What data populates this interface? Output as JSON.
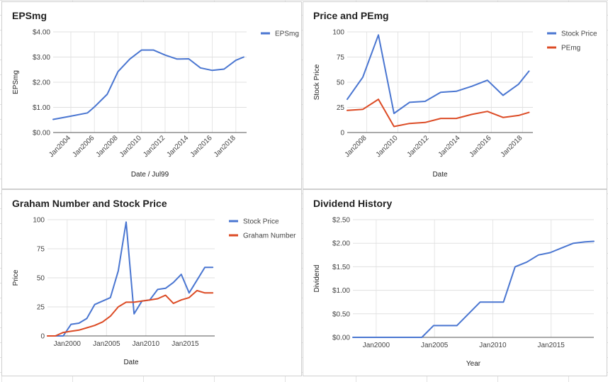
{
  "chart_data": [
    {
      "id": "p1",
      "type": "line",
      "title": "EPSmg",
      "xlabel": "Date / Jul99",
      "ylabel": "EPSmg",
      "x_type": "date",
      "xlim": [
        "2002-07-01",
        "2018-12-01"
      ],
      "ylim": [
        0,
        4
      ],
      "y_ticks": [
        0,
        1,
        2,
        3,
        4
      ],
      "y_tick_labels": [
        "$0.00",
        "$1.00",
        "$2.00",
        "$3.00",
        "$4.00"
      ],
      "x_ticks": [
        "2004-01-01",
        "2006-01-01",
        "2008-01-01",
        "2010-01-01",
        "2012-01-01",
        "2014-01-01",
        "2016-01-01",
        "2018-01-01"
      ],
      "x_tick_labels": [
        "Jan2004",
        "Jan2006",
        "Jan2008",
        "Jan2010",
        "Jan2012",
        "Jan2014",
        "Jan2016",
        "Jan2018"
      ],
      "x_tick_rotate": true,
      "legend": "right",
      "series": [
        {
          "name": "EPSmg",
          "color": "#4a76d1",
          "x": [
            "2002-07-01",
            "2004-01-01",
            "2005-06-01",
            "2006-01-01",
            "2007-02-01",
            "2008-01-01",
            "2009-01-01",
            "2010-01-01",
            "2011-01-01",
            "2012-01-01",
            "2013-01-01",
            "2014-01-01",
            "2015-01-01",
            "2016-01-01",
            "2017-01-01",
            "2018-01-01",
            "2018-09-01"
          ],
          "y": [
            0.52,
            0.65,
            0.78,
            1.02,
            1.52,
            2.42,
            2.92,
            3.28,
            3.28,
            3.08,
            2.92,
            2.93,
            2.57,
            2.47,
            2.52,
            2.87,
            3.0
          ]
        }
      ]
    },
    {
      "id": "p2",
      "type": "line",
      "title": "Price and PEmg",
      "xlabel": "Date",
      "ylabel": "Stock Price",
      "x_type": "date",
      "xlim": [
        "2006-10-01",
        "2018-09-01"
      ],
      "ylim": [
        0,
        100
      ],
      "y_ticks": [
        0,
        25,
        50,
        75,
        100
      ],
      "y_tick_labels": [
        "0",
        "25",
        "50",
        "75",
        "100"
      ],
      "x_ticks": [
        "2008-01-01",
        "2010-01-01",
        "2012-01-01",
        "2014-01-01",
        "2016-01-01",
        "2018-01-01"
      ],
      "x_tick_labels": [
        "Jan2008",
        "Jan2010",
        "Jan2012",
        "Jan2014",
        "Jan2016",
        "Jan2018"
      ],
      "x_tick_rotate": true,
      "legend": "right",
      "series": [
        {
          "name": "Stock Price",
          "color": "#4a76d1",
          "x": [
            "2006-10-01",
            "2007-10-01",
            "2008-10-01",
            "2009-10-01",
            "2010-10-01",
            "2011-10-01",
            "2012-10-01",
            "2013-10-01",
            "2014-10-01",
            "2015-10-01",
            "2016-10-01",
            "2017-10-01",
            "2018-06-01"
          ],
          "y": [
            33,
            55,
            97,
            19,
            30,
            31,
            40,
            41,
            46,
            52,
            37,
            48,
            61
          ]
        },
        {
          "name": "PEmg",
          "color": "#dc4b25",
          "x": [
            "2006-10-01",
            "2007-10-01",
            "2008-10-01",
            "2009-10-01",
            "2010-10-01",
            "2011-10-01",
            "2012-10-01",
            "2013-10-01",
            "2014-10-01",
            "2015-10-01",
            "2016-10-01",
            "2017-10-01",
            "2018-06-01"
          ],
          "y": [
            22,
            23,
            33,
            6,
            9,
            10,
            14,
            14,
            18,
            21,
            15,
            17,
            20
          ]
        }
      ]
    },
    {
      "id": "p3",
      "type": "line",
      "title": "Graham Number and Stock Price",
      "xlabel": "Date",
      "ylabel": "Price",
      "x_type": "date",
      "xlim": [
        "1997-07-01",
        "2018-10-01"
      ],
      "ylim": [
        0,
        100
      ],
      "y_ticks": [
        0,
        25,
        50,
        75,
        100
      ],
      "y_tick_labels": [
        "0",
        "25",
        "50",
        "75",
        "100"
      ],
      "x_ticks": [
        "2000-01-01",
        "2005-01-01",
        "2010-01-01",
        "2015-01-01"
      ],
      "x_tick_labels": [
        "Jan2000",
        "Jan2005",
        "Jan2010",
        "Jan2015"
      ],
      "x_tick_rotate": false,
      "legend": "right",
      "series": [
        {
          "name": "Stock Price",
          "color": "#4a76d1",
          "x": [
            "1997-07-01",
            "1998-07-01",
            "1999-07-01",
            "2000-07-01",
            "2001-07-01",
            "2002-07-01",
            "2003-07-01",
            "2004-07-01",
            "2005-07-01",
            "2006-07-01",
            "2007-07-01",
            "2008-07-01",
            "2009-07-01",
            "2010-07-01",
            "2011-07-01",
            "2012-07-01",
            "2013-07-01",
            "2014-07-01",
            "2015-07-01",
            "2016-07-01",
            "2017-07-01",
            "2018-07-01"
          ],
          "y": [
            0,
            0,
            0,
            10,
            11,
            15,
            27,
            30,
            33,
            56,
            98,
            19,
            30,
            31,
            40,
            41,
            46,
            53,
            37,
            48,
            59,
            59
          ]
        },
        {
          "name": "Graham Number",
          "color": "#dc4b25",
          "x": [
            "1997-07-01",
            "1998-07-01",
            "1999-07-01",
            "2000-07-01",
            "2001-07-01",
            "2002-07-01",
            "2003-07-01",
            "2004-07-01",
            "2005-07-01",
            "2006-07-01",
            "2007-07-01",
            "2008-07-01",
            "2009-07-01",
            "2010-07-01",
            "2011-07-01",
            "2012-07-01",
            "2013-07-01",
            "2014-07-01",
            "2015-07-01",
            "2016-07-01",
            "2017-07-01",
            "2018-07-01"
          ],
          "y": [
            0,
            0,
            3,
            4,
            5,
            7,
            9,
            12,
            17,
            25,
            29,
            29,
            30,
            31,
            32,
            35,
            28,
            31,
            33,
            39,
            37,
            37
          ]
        }
      ]
    },
    {
      "id": "p4",
      "type": "line",
      "title": "Dividend History",
      "xlabel": "Year",
      "ylabel": "Dividend",
      "x_type": "date",
      "xlim": [
        "1998-01-01",
        "2018-09-01"
      ],
      "ylim": [
        0,
        2.5
      ],
      "y_ticks": [
        0,
        0.5,
        1,
        1.5,
        2,
        2.5
      ],
      "y_tick_labels": [
        "$0.00",
        "$0.50",
        "$1.00",
        "$1.50",
        "$2.00",
        "$2.50"
      ],
      "x_ticks": [
        "2000-01-01",
        "2005-01-01",
        "2010-01-01",
        "2015-01-01"
      ],
      "x_tick_labels": [
        "Jan2000",
        "Jan2005",
        "Jan2010",
        "Jan2015"
      ],
      "x_tick_rotate": false,
      "legend": "none",
      "series": [
        {
          "name": "",
          "color": "#4a76d1",
          "x": [
            "1998-01-01",
            "2003-12-01",
            "2004-12-01",
            "2006-12-01",
            "2008-12-01",
            "2010-12-01",
            "2011-12-01",
            "2012-12-01",
            "2013-12-01",
            "2014-12-01",
            "2015-12-01",
            "2016-12-01",
            "2017-12-01",
            "2018-09-01"
          ],
          "y": [
            0,
            0,
            0.25,
            0.25,
            0.75,
            0.75,
            1.5,
            1.6,
            1.75,
            1.8,
            1.9,
            2.0,
            2.03,
            2.04
          ]
        }
      ]
    }
  ]
}
